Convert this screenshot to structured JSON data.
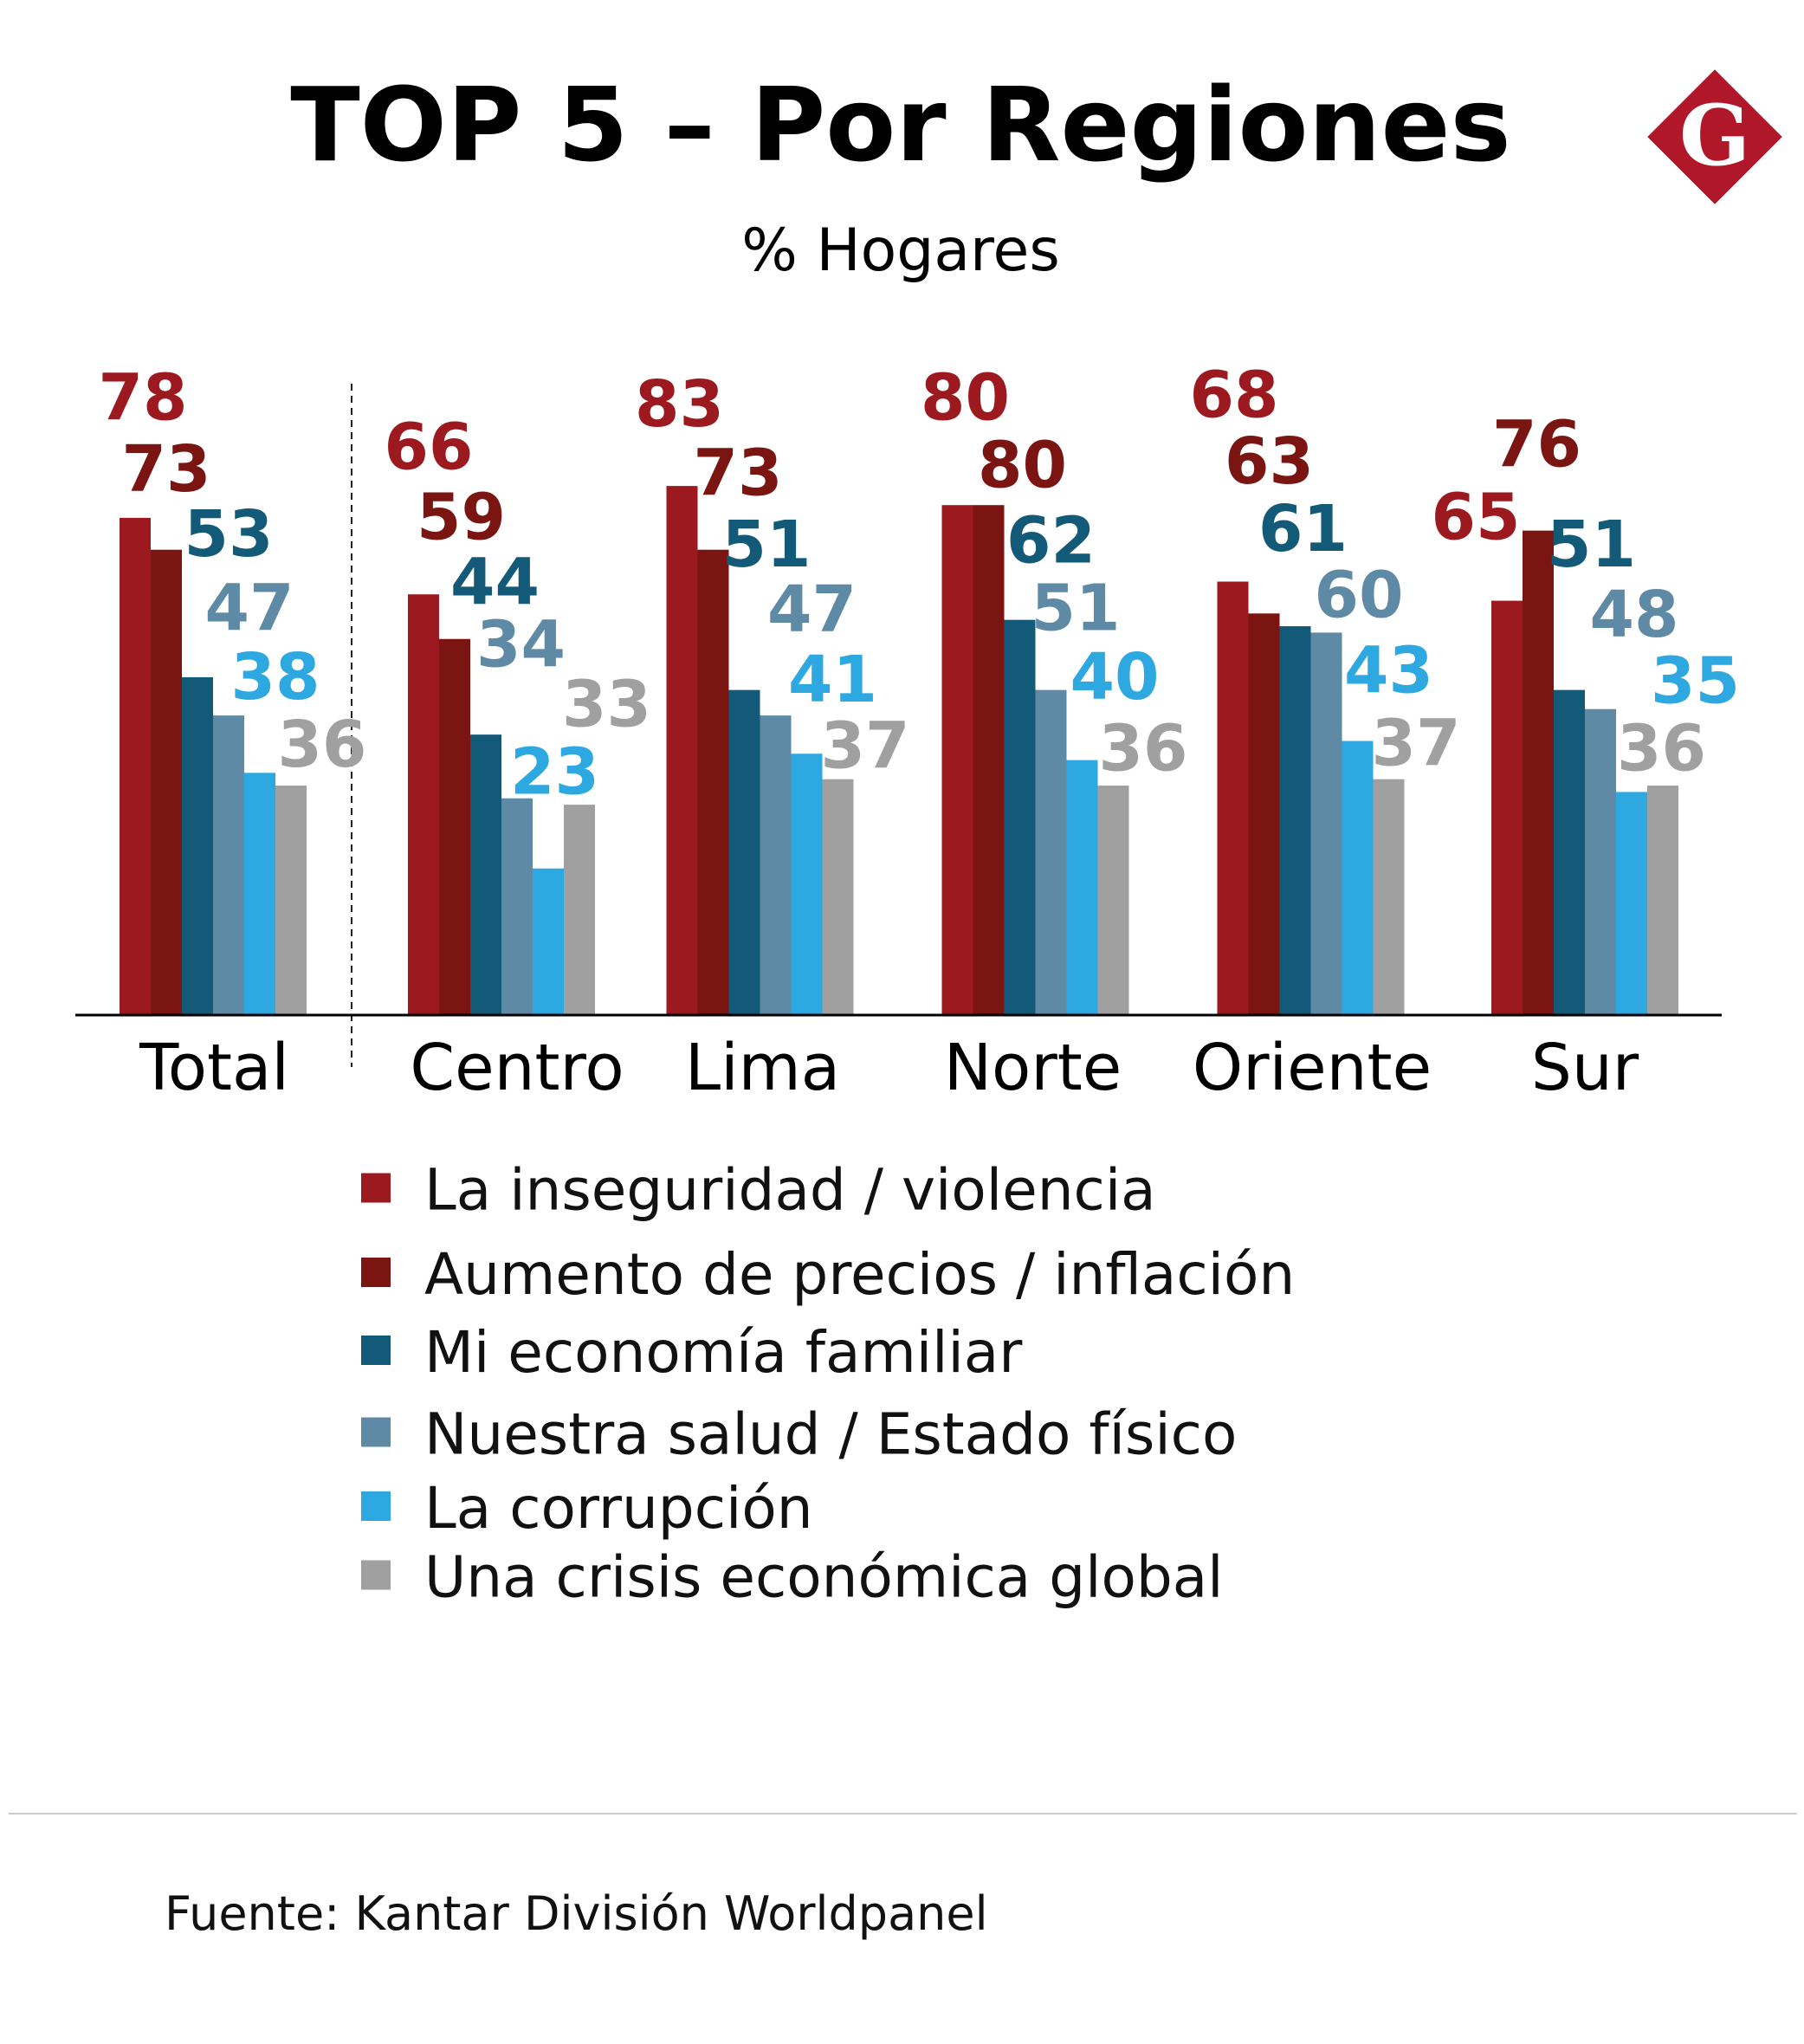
{
  "header": {
    "title": "TOP 5 – Por Regiones",
    "subtitle": "% Hogares",
    "logo_letter": "G",
    "logo_color": "#b0182a"
  },
  "chart_data": {
    "type": "bar",
    "title": "TOP 5 – Por Regiones",
    "subtitle": "% Hogares",
    "categories": [
      "Total",
      "Centro",
      "Lima",
      "Norte",
      "Oriente",
      "Sur"
    ],
    "series": [
      {
        "name": "La inseguridad / violencia",
        "color": "#9c1a1f",
        "values": [
          78,
          66,
          83,
          80,
          68,
          65
        ]
      },
      {
        "name": "Aumento de precios / inflación",
        "color": "#7a1511",
        "values": [
          73,
          59,
          73,
          80,
          63,
          76
        ]
      },
      {
        "name": "Mi economía familiar",
        "color": "#135a78",
        "values": [
          53,
          44,
          51,
          62,
          61,
          51
        ]
      },
      {
        "name": "Nuestra salud / Estado físico",
        "color": "#5e8aa6",
        "values": [
          47,
          34,
          47,
          51,
          60,
          48
        ]
      },
      {
        "name": "La corrupción",
        "color": "#2ea8e0",
        "values": [
          38,
          23,
          41,
          40,
          43,
          35
        ]
      },
      {
        "name": "Una crisis económica global",
        "color": "#a0a0a0",
        "values": [
          36,
          33,
          37,
          36,
          37,
          36
        ]
      }
    ],
    "ylim": [
      0,
      100
    ],
    "grid": false,
    "legend_position": "bottom"
  },
  "footer": {
    "source": "Fuente: Kantar División Worldpanel"
  }
}
